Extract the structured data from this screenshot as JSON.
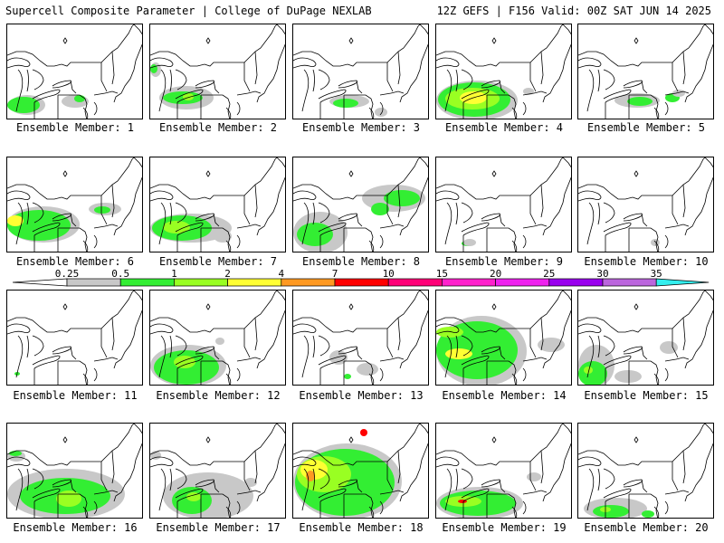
{
  "header": {
    "left": "Supercell Composite Parameter | College of DuPage NEXLAB",
    "right": "12Z GEFS | F156 Valid: 00Z SAT JUN 14 2025"
  },
  "members": [
    {
      "label": "Ensemble Member: 1"
    },
    {
      "label": "Ensemble Member: 2"
    },
    {
      "label": "Ensemble Member: 3"
    },
    {
      "label": "Ensemble Member: 4"
    },
    {
      "label": "Ensemble Member: 5"
    },
    {
      "label": "Ensemble Member: 6"
    },
    {
      "label": "Ensemble Member: 7"
    },
    {
      "label": "Ensemble Member: 8"
    },
    {
      "label": "Ensemble Member: 9"
    },
    {
      "label": "Ensemble Member: 10"
    },
    {
      "label": "Ensemble Member: 11"
    },
    {
      "label": "Ensemble Member: 12"
    },
    {
      "label": "Ensemble Member: 13"
    },
    {
      "label": "Ensemble Member: 14"
    },
    {
      "label": "Ensemble Member: 15"
    },
    {
      "label": "Ensemble Member: 16"
    },
    {
      "label": "Ensemble Member: 17"
    },
    {
      "label": "Ensemble Member: 18"
    },
    {
      "label": "Ensemble Member: 19"
    },
    {
      "label": "Ensemble Member: 20"
    }
  ],
  "colorbar": {
    "labels": [
      "0.25",
      "0.5",
      "1",
      "2",
      "4",
      "7",
      "10",
      "15",
      "20",
      "25",
      "30",
      "35"
    ],
    "colors": [
      "#c8c8c8",
      "#33ee33",
      "#99ff22",
      "#ffff33",
      "#ff9922",
      "#ff0000",
      "#ff0077",
      "#ff22cc",
      "#ee22ee",
      "#9900ee",
      "#bb66dd",
      "#33eeee"
    ]
  }
}
